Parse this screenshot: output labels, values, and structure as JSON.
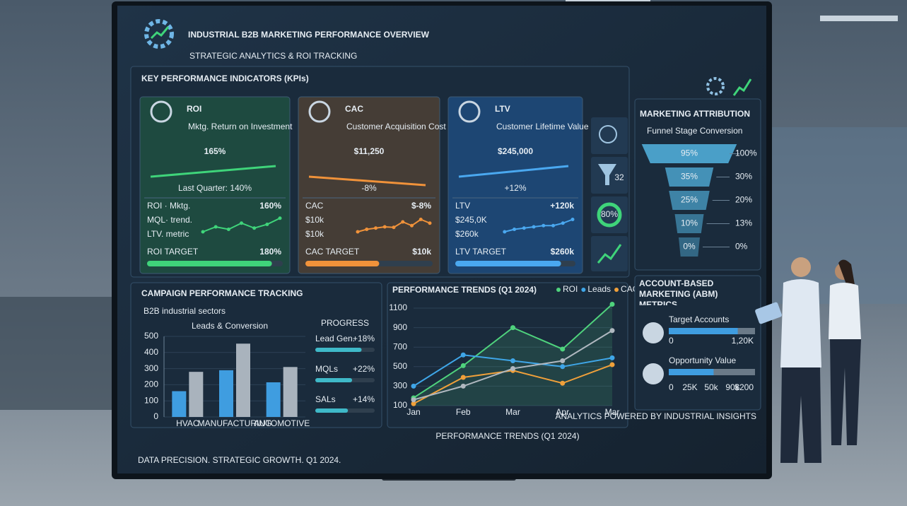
{
  "header": {
    "title": "INDUSTRIAL B2B MARKETING PERFORMANCE OVERVIEW",
    "subtitle": "STRATEGIC ANALYTICS & ROI TRACKING"
  },
  "kpi_section": {
    "title": "KEY PERFORMANCE INDICATORS (KPIs)",
    "cards": [
      {
        "name": "ROI",
        "description": "Mktg. Return on Investment",
        "value": "165%",
        "note": "Last Quarter: 140%",
        "color": "#3fd47a",
        "background": "#1e4a40",
        "details": [
          "ROI · Mktg.",
          "MQL· trend.",
          "LTV. metric"
        ],
        "spark_label": "160%",
        "sparkline": [
          20,
          40,
          30,
          55,
          35,
          50,
          75
        ],
        "target_label": "ROI TARGET",
        "target": "180%",
        "target_fill": 92
      },
      {
        "name": "CAC",
        "description": "Customer Acquisition Cost",
        "value": "$11,250",
        "note": "-8%",
        "color": "#f0923a",
        "background": "#453d36",
        "details": [
          "CAC",
          "$10k",
          "$10k"
        ],
        "spark_label": "$-8%",
        "sparkline": [
          20,
          30,
          35,
          40,
          38,
          60,
          45,
          70,
          55
        ],
        "target_label": "CAC TARGET",
        "target": "$10k",
        "target_fill": 58
      },
      {
        "name": "LTV",
        "description": "Customer Lifetime Value",
        "value": "$245,000",
        "note": "+12%",
        "color": "#4aa8f0",
        "background": "#1d4673",
        "details": [
          "LTV",
          "$245,0K",
          "$260k"
        ],
        "spark_label": "+120k",
        "sparkline": [
          20,
          30,
          35,
          40,
          45,
          45,
          55,
          70
        ],
        "target_label": "LTV TARGET",
        "target": "$260k",
        "target_fill": 88
      }
    ],
    "side_labels": [
      "32",
      "80%"
    ]
  },
  "chart_data": [
    {
      "type": "funnel",
      "title": "MARKETING ATTRIBUTION",
      "subtitle": "Funnel Stage Conversion",
      "values": [
        95,
        35,
        25,
        10,
        0
      ],
      "value_labels": [
        "95%",
        "35%",
        "25%",
        "10%",
        "0%"
      ],
      "side_labels": [
        "100%",
        "30%",
        "20%",
        "13%",
        "0%"
      ],
      "color": "#4a9fc8"
    },
    {
      "type": "bar",
      "title": "CAMPAIGN PERFORMANCE TRACKING",
      "subtitle": "B2B industrial sectors",
      "chart_title": "Leads & Conversion",
      "categories": [
        "HVAC",
        "MANUFACTURING",
        "AUTOMOTIVE"
      ],
      "series": [
        {
          "color": "#3f9de0",
          "values": [
            160,
            290,
            215
          ]
        },
        {
          "color": "#a9b3bd",
          "values": [
            280,
            455,
            310
          ]
        }
      ],
      "ylim": [
        0,
        500
      ],
      "yticks": [
        0,
        100,
        200,
        300,
        400,
        500
      ],
      "progress": {
        "title": "PROGRESS",
        "items": [
          {
            "label": "Lead Gen.",
            "change": "+18%",
            "fill": 78
          },
          {
            "label": "MQLs",
            "change": "+22%",
            "fill": 62
          },
          {
            "label": "SALs",
            "change": "+14%",
            "fill": 55
          }
        ]
      }
    },
    {
      "type": "line",
      "title": "PERFORMANCE TRENDS (Q1 2024)",
      "categories": [
        "Jan",
        "Feb",
        "Mar",
        "Apr",
        "Mar"
      ],
      "series": [
        {
          "name": "ROI",
          "color": "#4fd37d",
          "values": [
            180,
            510,
            900,
            680,
            1140
          ]
        },
        {
          "name": "Leads",
          "color": "#3fa6e8",
          "values": [
            300,
            620,
            560,
            500,
            590
          ]
        },
        {
          "name": "CAC",
          "color": "#f0a03a",
          "values": [
            120,
            390,
            460,
            330,
            520
          ]
        },
        {
          "color": "#b0b8c0",
          "values": [
            160,
            300,
            480,
            560,
            870
          ]
        }
      ],
      "ylim": [
        100,
        1100
      ],
      "yticks": [
        100,
        300,
        500,
        700,
        900,
        1100
      ]
    }
  ],
  "abm": {
    "title": "ACCOUNT-BASED MARKETING (ABM) METRICS",
    "items": [
      {
        "label": "Target Accounts",
        "fill": 80,
        "tick_labels": [
          "0",
          "1,20K"
        ]
      },
      {
        "label": "Opportunity Value",
        "fill": 52,
        "tick_labels": [
          "0",
          "25K",
          "50k",
          "90k",
          "$200"
        ]
      }
    ]
  },
  "footer": {
    "left": "DATA PRECISION. STRATEGIC GROWTH. Q1 2024.",
    "center": "PERFORMANCE TRENDS (Q1 2024)",
    "right": "ANALYTICS POWERED BY INDUSTRIAL INSIGHTS"
  }
}
